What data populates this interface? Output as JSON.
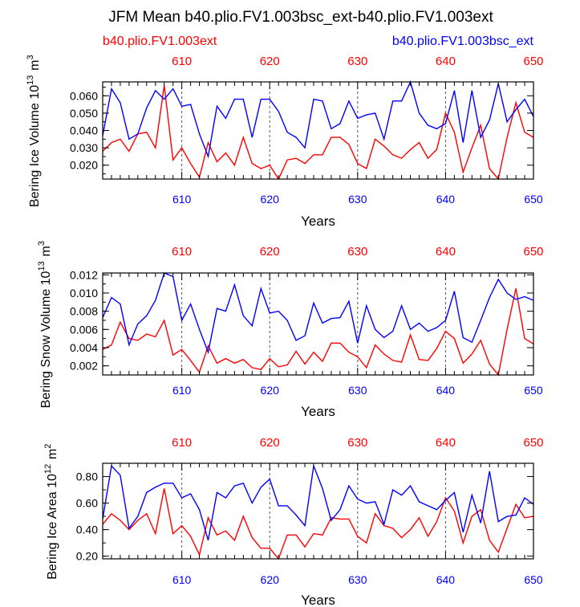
{
  "title": "JFM Mean b40.plio.FV1.003bsc_ext-b40.plio.FV1.003ext",
  "legend": {
    "left": "b40.plio.FV1.003ext",
    "right": "b40.plio.FV1.003bsc_ext"
  },
  "colors": {
    "red": "#ff0000",
    "blue": "#0000ff"
  },
  "chart_data": [
    {
      "type": "line",
      "ylabel": "Bering Ice Volume 10^13 m^3",
      "xlabel": "Years",
      "xlim": [
        601,
        650
      ],
      "ylim": [
        0.012,
        0.068
      ],
      "yticks": [
        0.02,
        0.03,
        0.04,
        0.05,
        0.06
      ],
      "yticklabels": [
        "0.020",
        "0.030",
        "0.040",
        "0.050",
        "0.060"
      ],
      "x": [
        601,
        602,
        603,
        604,
        605,
        606,
        607,
        608,
        609,
        610,
        611,
        612,
        613,
        614,
        615,
        616,
        617,
        618,
        619,
        620,
        621,
        622,
        623,
        624,
        625,
        626,
        627,
        628,
        629,
        630,
        631,
        632,
        633,
        634,
        635,
        636,
        637,
        638,
        639,
        640,
        641,
        642,
        643,
        644,
        645,
        646,
        647,
        648,
        649,
        650
      ],
      "series": [
        {
          "name": "b40.plio.FV1.003ext",
          "color": "red",
          "values": [
            0.028,
            0.033,
            0.035,
            0.028,
            0.038,
            0.039,
            0.03,
            0.066,
            0.023,
            0.03,
            0.021,
            0.013,
            0.033,
            0.022,
            0.027,
            0.02,
            0.036,
            0.021,
            0.018,
            0.02,
            0.012,
            0.023,
            0.024,
            0.021,
            0.026,
            0.026,
            0.036,
            0.036,
            0.032,
            0.021,
            0.018,
            0.035,
            0.031,
            0.026,
            0.024,
            0.029,
            0.033,
            0.024,
            0.029,
            0.05,
            0.039,
            0.016,
            0.03,
            0.043,
            0.018,
            0.012,
            0.036,
            0.056,
            0.039,
            0.036
          ]
        },
        {
          "name": "b40.plio.FV1.003bsc_ext",
          "color": "blue",
          "values": [
            0.037,
            0.064,
            0.056,
            0.035,
            0.038,
            0.053,
            0.063,
            0.058,
            0.064,
            0.054,
            0.055,
            0.038,
            0.025,
            0.054,
            0.047,
            0.058,
            0.058,
            0.036,
            0.058,
            0.058,
            0.051,
            0.039,
            0.036,
            0.03,
            0.058,
            0.057,
            0.041,
            0.044,
            0.057,
            0.047,
            0.049,
            0.05,
            0.035,
            0.057,
            0.057,
            0.068,
            0.05,
            0.043,
            0.041,
            0.044,
            0.063,
            0.033,
            0.063,
            0.036,
            0.046,
            0.067,
            0.045,
            0.052,
            0.058,
            0.048
          ]
        }
      ]
    },
    {
      "type": "line",
      "ylabel": "Bering Snow Volume 10^13 m^3",
      "xlabel": "Years",
      "xlim": [
        601,
        650
      ],
      "ylim": [
        0.001,
        0.0122
      ],
      "yticks": [
        0.002,
        0.004,
        0.006,
        0.008,
        0.01,
        0.012
      ],
      "yticklabels": [
        "0.002",
        "0.004",
        "0.006",
        "0.008",
        "0.010",
        "0.012"
      ],
      "x": [
        601,
        602,
        603,
        604,
        605,
        606,
        607,
        608,
        609,
        610,
        611,
        612,
        613,
        614,
        615,
        616,
        617,
        618,
        619,
        620,
        621,
        622,
        623,
        624,
        625,
        626,
        627,
        628,
        629,
        630,
        631,
        632,
        633,
        634,
        635,
        636,
        637,
        638,
        639,
        640,
        641,
        642,
        643,
        644,
        645,
        646,
        647,
        648,
        649,
        650
      ],
      "series": [
        {
          "name": "b40.plio.FV1.003ext",
          "color": "red",
          "values": [
            0.0038,
            0.0043,
            0.0068,
            0.005,
            0.0048,
            0.0055,
            0.0052,
            0.007,
            0.0032,
            0.0038,
            0.0026,
            0.0013,
            0.0042,
            0.0023,
            0.0028,
            0.0023,
            0.0027,
            0.0018,
            0.0016,
            0.0028,
            0.0019,
            0.0021,
            0.0036,
            0.0022,
            0.0035,
            0.0025,
            0.0045,
            0.0045,
            0.0035,
            0.003,
            0.0018,
            0.0043,
            0.0033,
            0.0026,
            0.0024,
            0.0054,
            0.0027,
            0.0026,
            0.0039,
            0.0058,
            0.005,
            0.0023,
            0.0033,
            0.0048,
            0.0022,
            0.001,
            0.006,
            0.0105,
            0.005,
            0.0044
          ]
        },
        {
          "name": "b40.plio.FV1.003bsc_ext",
          "color": "blue",
          "values": [
            0.0073,
            0.0095,
            0.0088,
            0.0043,
            0.0066,
            0.0075,
            0.0092,
            0.0122,
            0.0118,
            0.007,
            0.0088,
            0.006,
            0.0035,
            0.0083,
            0.008,
            0.0109,
            0.0075,
            0.0064,
            0.0105,
            0.0078,
            0.008,
            0.007,
            0.0048,
            0.0053,
            0.0089,
            0.0067,
            0.0072,
            0.0073,
            0.0091,
            0.0045,
            0.0086,
            0.006,
            0.0051,
            0.0058,
            0.0086,
            0.006,
            0.0067,
            0.0058,
            0.0062,
            0.007,
            0.0102,
            0.0051,
            0.0046,
            0.007,
            0.0095,
            0.0115,
            0.01,
            0.0093,
            0.0096,
            0.0092
          ]
        }
      ]
    },
    {
      "type": "line",
      "ylabel": "Bering Ice Area 10^12 m^2",
      "xlabel": "Years",
      "xlim": [
        601,
        650
      ],
      "ylim": [
        0.18,
        0.9
      ],
      "yticks": [
        0.2,
        0.4,
        0.6,
        0.8
      ],
      "yticklabels": [
        "0.20",
        "0.40",
        "0.60",
        "0.80"
      ],
      "x": [
        601,
        602,
        603,
        604,
        605,
        606,
        607,
        608,
        609,
        610,
        611,
        612,
        613,
        614,
        615,
        616,
        617,
        618,
        619,
        620,
        621,
        622,
        623,
        624,
        625,
        626,
        627,
        628,
        629,
        630,
        631,
        632,
        633,
        634,
        635,
        636,
        637,
        638,
        639,
        640,
        641,
        642,
        643,
        644,
        645,
        646,
        647,
        648,
        649,
        650
      ],
      "series": [
        {
          "name": "b40.plio.FV1.003ext",
          "color": "red",
          "values": [
            0.44,
            0.52,
            0.47,
            0.4,
            0.47,
            0.52,
            0.37,
            0.71,
            0.37,
            0.43,
            0.35,
            0.21,
            0.49,
            0.36,
            0.39,
            0.32,
            0.5,
            0.34,
            0.26,
            0.26,
            0.18,
            0.36,
            0.36,
            0.27,
            0.37,
            0.36,
            0.49,
            0.48,
            0.48,
            0.35,
            0.3,
            0.52,
            0.43,
            0.41,
            0.34,
            0.4,
            0.49,
            0.35,
            0.46,
            0.64,
            0.54,
            0.3,
            0.5,
            0.55,
            0.32,
            0.23,
            0.41,
            0.59,
            0.49,
            0.5
          ]
        },
        {
          "name": "b40.plio.FV1.003bsc_ext",
          "color": "blue",
          "values": [
            0.48,
            0.88,
            0.81,
            0.41,
            0.5,
            0.68,
            0.72,
            0.75,
            0.75,
            0.64,
            0.67,
            0.55,
            0.32,
            0.68,
            0.64,
            0.73,
            0.75,
            0.6,
            0.72,
            0.78,
            0.58,
            0.58,
            0.51,
            0.43,
            0.88,
            0.71,
            0.47,
            0.55,
            0.73,
            0.63,
            0.6,
            0.61,
            0.44,
            0.7,
            0.66,
            0.73,
            0.61,
            0.58,
            0.55,
            0.62,
            0.68,
            0.38,
            0.66,
            0.45,
            0.84,
            0.46,
            0.5,
            0.51,
            0.64,
            0.59
          ]
        }
      ]
    }
  ],
  "top_axis_labels": [
    "610",
    "620",
    "630",
    "640",
    "650"
  ],
  "bottom_axis_labels": [
    "610",
    "620",
    "630",
    "640",
    "650"
  ]
}
